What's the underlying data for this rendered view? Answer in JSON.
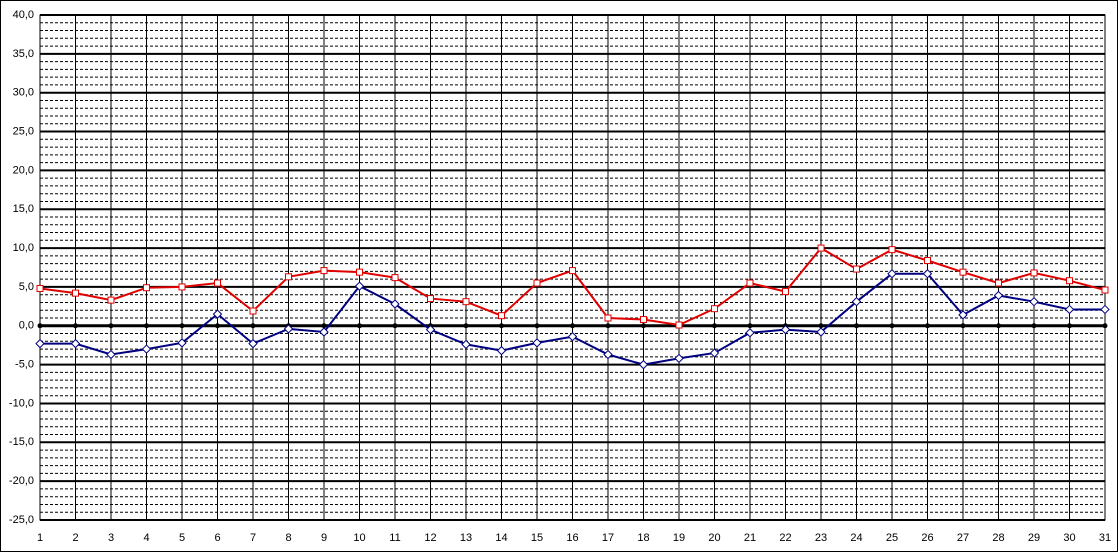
{
  "chart_data": {
    "type": "line",
    "x": [
      1,
      2,
      3,
      4,
      5,
      6,
      7,
      8,
      9,
      10,
      11,
      12,
      13,
      14,
      15,
      16,
      17,
      18,
      19,
      20,
      21,
      22,
      23,
      24,
      25,
      26,
      27,
      28,
      29,
      30,
      31
    ],
    "xlim": [
      1,
      31
    ],
    "xticks": [
      1,
      2,
      3,
      4,
      5,
      6,
      7,
      8,
      9,
      10,
      11,
      12,
      13,
      14,
      15,
      16,
      17,
      18,
      19,
      20,
      21,
      22,
      23,
      24,
      25,
      26,
      27,
      28,
      29,
      30,
      31
    ],
    "ylim": [
      -25,
      40
    ],
    "yticks": [
      {
        "value": -25,
        "label": "-25,0"
      },
      {
        "value": -20,
        "label": "-20,0"
      },
      {
        "value": -15,
        "label": "-15,0"
      },
      {
        "value": -10,
        "label": "-10,0"
      },
      {
        "value": -5,
        "label": "-5,0"
      },
      {
        "value": 0,
        "label": "0,0"
      },
      {
        "value": 5,
        "label": "5,0"
      },
      {
        "value": 10,
        "label": "10,0"
      },
      {
        "value": 15,
        "label": "15,0"
      },
      {
        "value": 20,
        "label": "20,0"
      },
      {
        "value": 25,
        "label": "25,0"
      },
      {
        "value": 30,
        "label": "30,0"
      },
      {
        "value": 35,
        "label": "35,0"
      },
      {
        "value": 40,
        "label": "40,0"
      }
    ],
    "grid": true,
    "series": [
      {
        "color": "#e00000",
        "marker": "square",
        "values": [
          4.8,
          4.2,
          3.3,
          4.9,
          5.0,
          5.5,
          1.9,
          6.3,
          7.1,
          6.9,
          6.2,
          3.5,
          3.1,
          1.3,
          5.5,
          7.1,
          1.0,
          0.8,
          0.1,
          2.2,
          5.5,
          4.4,
          10.0,
          7.3,
          9.8,
          8.4,
          6.9,
          5.5,
          6.8,
          5.8,
          4.6
        ]
      },
      {
        "color": "#000080",
        "marker": "diamond",
        "values": [
          -2.3,
          -2.3,
          -3.7,
          -3.0,
          -2.2,
          1.5,
          -2.3,
          -0.4,
          -0.8,
          5.1,
          2.8,
          -0.5,
          -2.4,
          -3.2,
          -2.2,
          -1.4,
          -3.7,
          -5.0,
          -4.2,
          -3.5,
          -0.9,
          -0.5,
          -0.8,
          3.1,
          6.7,
          6.7,
          1.4,
          3.9,
          3.1,
          2.1,
          2.1
        ]
      }
    ]
  }
}
